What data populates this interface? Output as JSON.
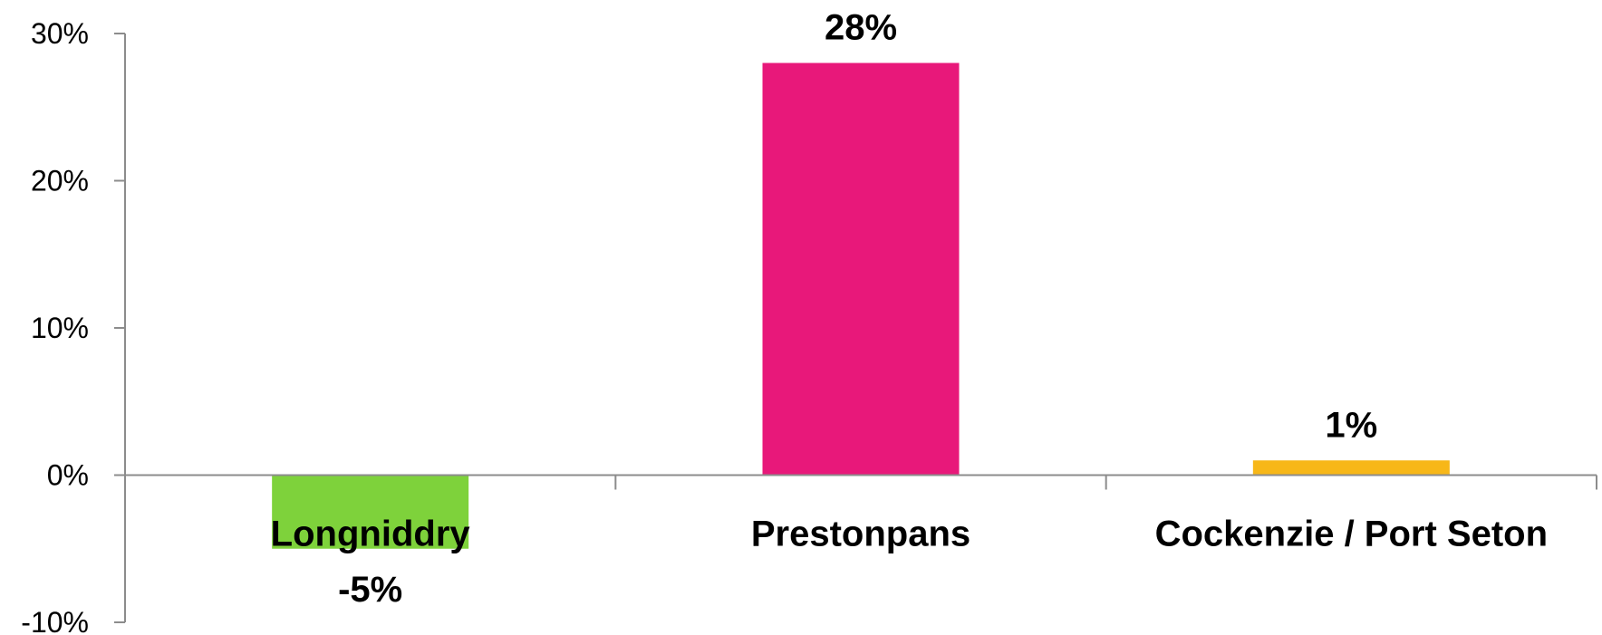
{
  "chart_data": {
    "type": "bar",
    "categories": [
      "Longniddry",
      "Prestonpans",
      "Cockenzie / Port Seton"
    ],
    "values": [
      -5,
      28,
      1
    ],
    "data_labels": [
      "-5%",
      "28%",
      "1%"
    ],
    "colors": [
      "#7ed23b",
      "#e8187a",
      "#f7b718"
    ],
    "ylim": [
      -10,
      30
    ],
    "yticks": [
      -10,
      0,
      10,
      20,
      30
    ],
    "ytick_labels": [
      "-10%",
      "0%",
      "10%",
      "20%",
      "30%"
    ],
    "title": "",
    "xlabel": "",
    "ylabel": "",
    "grid": false,
    "legend": "none",
    "axis_color": "#8c8c8c"
  }
}
